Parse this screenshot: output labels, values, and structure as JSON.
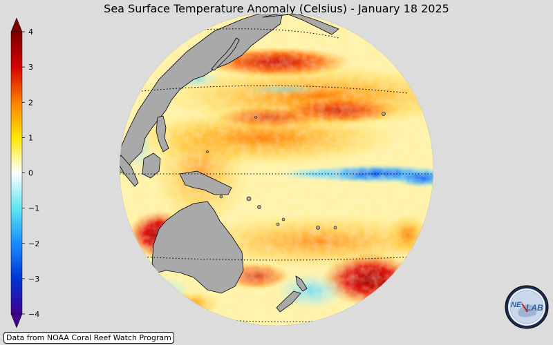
{
  "title": "Sea Surface Temperature Anomaly (Celsius) - January 18 2025",
  "colorbar": {
    "min": -4,
    "max": 4,
    "ticks": [
      "4",
      "3",
      "2",
      "1",
      "0",
      "−1",
      "−2",
      "−3",
      "−4"
    ],
    "extend": "both"
  },
  "credit": "Data from NOAA Coral Reef Watch Program",
  "logo": {
    "text_left": "NE",
    "text_right": "LAB"
  },
  "colors": {
    "background": "#dcdcdc",
    "land": "#a9a9a9",
    "ocean_neutral": "#ffffff",
    "warm": "#ff8c00",
    "hot": "#cc0000",
    "cool": "#40c0f0",
    "cold": "#1060ff"
  }
}
